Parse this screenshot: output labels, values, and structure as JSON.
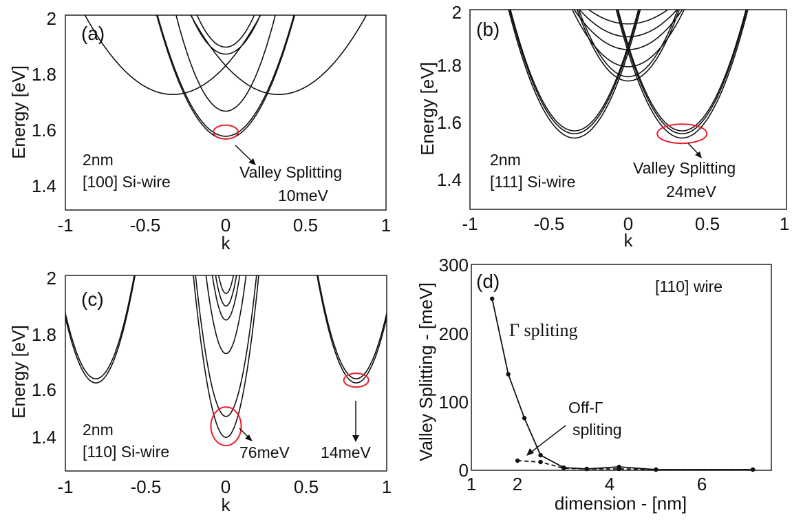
{
  "chart_data": [
    {
      "panel_label": "(a)",
      "type": "line",
      "xlabel": "k",
      "ylabel": "Energy [eV]",
      "xlim": [
        -1,
        1
      ],
      "ylim": [
        1.3,
        2.0
      ],
      "xticks": [
        "-1",
        "-0.5",
        "0",
        "0.5",
        "1"
      ],
      "yticks": [
        "1.4",
        "1.6",
        "1.8",
        "2"
      ],
      "grid": false,
      "annotations": {
        "wire_size": "2nm",
        "wire_type": "[100] Si-wire",
        "splitting_title": "Valley Splitting",
        "splitting_value": "10meV"
      },
      "bands": [
        {
          "k0": 0,
          "e0": 1.555,
          "curv": 2.4
        },
        {
          "k0": 0,
          "e0": 1.565,
          "curv": 2.4
        },
        {
          "k0": 0,
          "e0": 1.655,
          "curv": 3.6
        },
        {
          "k0": 0,
          "e0": 1.86,
          "curv": 3.0
        },
        {
          "k0": 0,
          "e0": 1.885,
          "curv": 3.6
        },
        {
          "k0": -0.33,
          "e0": 1.715,
          "curv": 0.95
        },
        {
          "k0": 0.33,
          "e0": 1.715,
          "curv": 0.95
        }
      ],
      "highlight": {
        "k": 0,
        "e": 1.58
      }
    },
    {
      "panel_label": "(b)",
      "type": "line",
      "xlabel": "k",
      "ylabel": "Energy [eV]",
      "xlim": [
        -1,
        1
      ],
      "ylim": [
        1.3,
        2.0
      ],
      "xticks": [
        "-1",
        "-0.5",
        "0",
        "0.5",
        "1"
      ],
      "yticks": [
        "1.4",
        "1.6",
        "1.8",
        "2"
      ],
      "grid": false,
      "annotations": {
        "wire_size": "2nm",
        "wire_type": "[111] Si-wire",
        "splitting_title": "Valley Splitting",
        "splitting_value": "24meV"
      },
      "bands": [
        {
          "k0": -0.34,
          "e0": 1.55,
          "curv": 2.6
        },
        {
          "k0": 0.34,
          "e0": 1.55,
          "curv": 2.6
        },
        {
          "k0": -0.34,
          "e0": 1.565,
          "curv": 2.6
        },
        {
          "k0": 0.34,
          "e0": 1.565,
          "curv": 2.6
        },
        {
          "k0": -0.34,
          "e0": 1.575,
          "curv": 2.6
        },
        {
          "k0": 0.34,
          "e0": 1.575,
          "curv": 2.6
        },
        {
          "k0": 0,
          "e0": 1.75,
          "curv": 2.4
        },
        {
          "k0": 0,
          "e0": 1.765,
          "curv": 2.4
        },
        {
          "k0": 0,
          "e0": 1.8,
          "curv": 1.6
        },
        {
          "k0": 0,
          "e0": 1.86,
          "curv": 1.2
        },
        {
          "k0": 0,
          "e0": 1.905,
          "curv": 1.0
        },
        {
          "k0": 0,
          "e0": 1.95,
          "curv": 0.8
        }
      ],
      "highlight": {
        "k": 0.34,
        "e": 1.565
      }
    },
    {
      "panel_label": "(c)",
      "type": "line",
      "xlabel": "k",
      "ylabel": "Energy [eV]",
      "xlim": [
        -1,
        1
      ],
      "ylim": [
        1.3,
        2.0
      ],
      "xticks": [
        "-1",
        "-0.5",
        "0",
        "0.5",
        "1"
      ],
      "yticks": [
        "1.4",
        "1.6",
        "1.8",
        "2"
      ],
      "grid": false,
      "annotations": {
        "wire_size": "2nm",
        "wire_type": "[110] Si-wire",
        "center_splitting": "76meV",
        "side_splitting": "14meV"
      },
      "bands": [
        {
          "k0": 0,
          "e0": 1.42,
          "curv": 14
        },
        {
          "k0": 0,
          "e0": 1.495,
          "curv": 14
        },
        {
          "k0": 0,
          "e0": 1.72,
          "curv": 18
        },
        {
          "k0": 0,
          "e0": 1.84,
          "curv": 22
        },
        {
          "k0": 0,
          "e0": 1.89,
          "curv": 26
        },
        {
          "k0": 0,
          "e0": 1.935,
          "curv": 30
        },
        {
          "k0": -0.81,
          "e0": 1.615,
          "curv": 6.5
        },
        {
          "k0": -0.81,
          "e0": 1.63,
          "curv": 6.5
        },
        {
          "k0": 0.81,
          "e0": 1.615,
          "curv": 6.5
        },
        {
          "k0": 0.81,
          "e0": 1.63,
          "curv": 6.5
        }
      ],
      "highlights": [
        {
          "k": 0,
          "e": 1.46
        },
        {
          "k": 0.81,
          "e": 1.625
        }
      ]
    },
    {
      "panel_label": "(d)",
      "type": "line",
      "xlabel": "dimension - [nm]",
      "ylabel": "Valley Splitting - [meV]",
      "xlim": [
        1,
        7.5
      ],
      "ylim": [
        0,
        300
      ],
      "xticks": [
        "1",
        "2",
        "4",
        "6"
      ],
      "yticks": [
        "0",
        "100",
        "200",
        "300"
      ],
      "grid": false,
      "title": "[110] wire",
      "annotations": {
        "gamma_label": "Γ spliting",
        "off_gamma_line1": "Off-Γ",
        "off_gamma_line2": "spliting"
      },
      "series": [
        {
          "style": "solid",
          "x": [
            1.45,
            1.8,
            2.15,
            2.5,
            3.0,
            3.5,
            4.2,
            5.0,
            7.1
          ],
          "y": [
            250,
            140,
            76,
            22,
            4,
            2,
            5,
            1,
            1
          ]
        },
        {
          "style": "dashed",
          "x": [
            2.0,
            2.5,
            3.0,
            3.5,
            4.2,
            5.0,
            7.1
          ],
          "y": [
            14,
            12,
            3,
            2,
            2,
            1,
            1
          ]
        }
      ]
    }
  ]
}
